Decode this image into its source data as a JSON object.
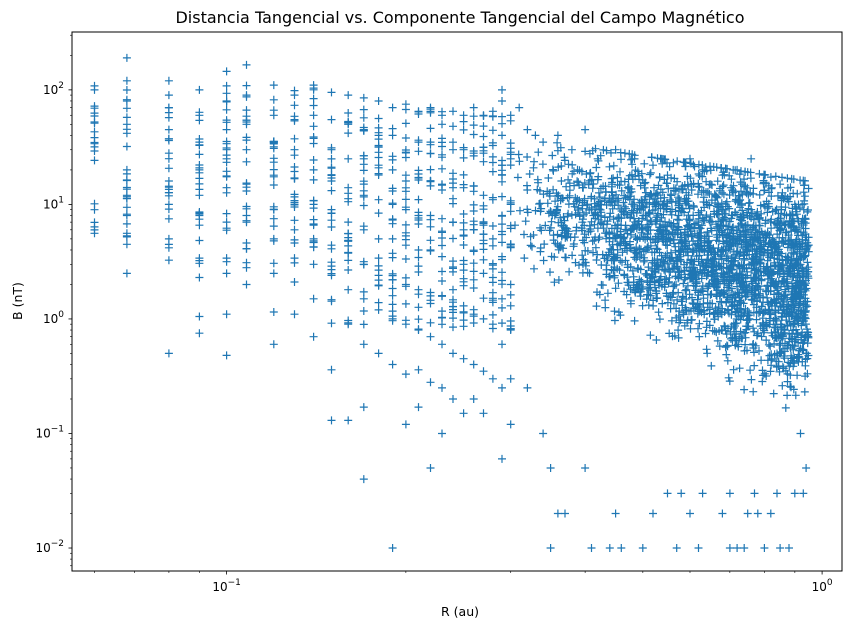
{
  "chart_data": {
    "type": "scatter",
    "title": "Distancia Tangencial vs. Componente Tangencial del Campo Magnético",
    "xlabel": "R (au)",
    "ylabel": "B (nT)",
    "xscale": "log",
    "yscale": "log",
    "xlim": [
      0.055,
      1.08
    ],
    "ylim": [
      0.0063,
      320
    ],
    "marker": "+",
    "color": "#1f77b4",
    "grid": false,
    "x_major_ticks": [
      {
        "value": 0.1,
        "base": "10",
        "exp": "−1"
      },
      {
        "value": 1,
        "base": "10",
        "exp": "0"
      }
    ],
    "y_major_ticks": [
      {
        "value": 0.01,
        "base": "10",
        "exp": "−2"
      },
      {
        "value": 0.1,
        "base": "10",
        "exp": "−1"
      },
      {
        "value": 1,
        "base": "10",
        "exp": "0"
      },
      {
        "value": 10,
        "base": "10",
        "exp": "1"
      },
      {
        "value": 100,
        "base": "10",
        "exp": "2"
      }
    ],
    "series": [
      {
        "x_columns": [
          0.06,
          0.068,
          0.08,
          0.09,
          0.1,
          0.108,
          0.12,
          0.13,
          0.14,
          0.15,
          0.16,
          0.17,
          0.18,
          0.19,
          0.2,
          0.21,
          0.22,
          0.23,
          0.24,
          0.25,
          0.26,
          0.27,
          0.28,
          0.29,
          0.3
        ],
        "points": [
          [
            0.06,
            100
          ],
          [
            0.068,
            190
          ],
          [
            0.068,
            120
          ],
          [
            0.068,
            80
          ],
          [
            0.068,
            50
          ],
          [
            0.068,
            32
          ],
          [
            0.068,
            20
          ],
          [
            0.068,
            12
          ],
          [
            0.068,
            8
          ],
          [
            0.068,
            5.2
          ],
          [
            0.068,
            2.5
          ],
          [
            0.08,
            120
          ],
          [
            0.08,
            70
          ],
          [
            0.08,
            45
          ],
          [
            0.08,
            28
          ],
          [
            0.08,
            16
          ],
          [
            0.08,
            10
          ],
          [
            0.08,
            5
          ],
          [
            0.08,
            0.5
          ],
          [
            0.09,
            100
          ],
          [
            0.09,
            60
          ],
          [
            0.09,
            35
          ],
          [
            0.09,
            20
          ],
          [
            0.09,
            12
          ],
          [
            0.09,
            8
          ],
          [
            0.09,
            3.4
          ],
          [
            0.09,
            2.3
          ],
          [
            0.09,
            1.05
          ],
          [
            0.09,
            0.75
          ],
          [
            0.1,
            145
          ],
          [
            0.1,
            80
          ],
          [
            0.1,
            45
          ],
          [
            0.1,
            25
          ],
          [
            0.1,
            14
          ],
          [
            0.1,
            7
          ],
          [
            0.1,
            3.4
          ],
          [
            0.1,
            2.5
          ],
          [
            0.1,
            1.1
          ],
          [
            0.1,
            0.48
          ],
          [
            0.108,
            165
          ],
          [
            0.108,
            90
          ],
          [
            0.108,
            50
          ],
          [
            0.108,
            30
          ],
          [
            0.108,
            15
          ],
          [
            0.108,
            8
          ],
          [
            0.108,
            4.6
          ],
          [
            0.108,
            2.8
          ],
          [
            0.108,
            2.0
          ],
          [
            0.12,
            110
          ],
          [
            0.12,
            60
          ],
          [
            0.12,
            35
          ],
          [
            0.12,
            18
          ],
          [
            0.12,
            9
          ],
          [
            0.12,
            5
          ],
          [
            0.12,
            2.5
          ],
          [
            0.12,
            1.15
          ],
          [
            0.12,
            0.6
          ],
          [
            0.13,
            90
          ],
          [
            0.13,
            55
          ],
          [
            0.13,
            30
          ],
          [
            0.13,
            17
          ],
          [
            0.13,
            10
          ],
          [
            0.13,
            6
          ],
          [
            0.13,
            3.4
          ],
          [
            0.13,
            2.1
          ],
          [
            0.13,
            1.1
          ],
          [
            0.14,
            110
          ],
          [
            0.14,
            60
          ],
          [
            0.14,
            34
          ],
          [
            0.14,
            20
          ],
          [
            0.14,
            10
          ],
          [
            0.14,
            5
          ],
          [
            0.14,
            3
          ],
          [
            0.14,
            1.5
          ],
          [
            0.14,
            0.7
          ],
          [
            0.15,
            95
          ],
          [
            0.15,
            55
          ],
          [
            0.15,
            30
          ],
          [
            0.15,
            16
          ],
          [
            0.15,
            9
          ],
          [
            0.15,
            4.4
          ],
          [
            0.15,
            2.4
          ],
          [
            0.15,
            0.36
          ],
          [
            0.15,
            0.13
          ],
          [
            0.16,
            90
          ],
          [
            0.16,
            50
          ],
          [
            0.16,
            25
          ],
          [
            0.16,
            14
          ],
          [
            0.16,
            7
          ],
          [
            0.16,
            3.8
          ],
          [
            0.16,
            1.8
          ],
          [
            0.16,
            0.9
          ],
          [
            0.16,
            0.13
          ],
          [
            0.17,
            85
          ],
          [
            0.17,
            45
          ],
          [
            0.17,
            25
          ],
          [
            0.17,
            12
          ],
          [
            0.17,
            6
          ],
          [
            0.17,
            3
          ],
          [
            0.17,
            1.5
          ],
          [
            0.17,
            0.6
          ],
          [
            0.17,
            0.17
          ],
          [
            0.17,
            0.04
          ],
          [
            0.18,
            80
          ],
          [
            0.18,
            40
          ],
          [
            0.18,
            22
          ],
          [
            0.18,
            11
          ],
          [
            0.18,
            5
          ],
          [
            0.18,
            2.4
          ],
          [
            0.18,
            1.2
          ],
          [
            0.18,
            0.5
          ],
          [
            0.19,
            70
          ],
          [
            0.19,
            40
          ],
          [
            0.19,
            20
          ],
          [
            0.19,
            10
          ],
          [
            0.19,
            5
          ],
          [
            0.19,
            2.2
          ],
          [
            0.19,
            1.0
          ],
          [
            0.19,
            0.4
          ],
          [
            0.19,
            0.01
          ],
          [
            0.2,
            75
          ],
          [
            0.2,
            38
          ],
          [
            0.2,
            18
          ],
          [
            0.2,
            9
          ],
          [
            0.2,
            4.4
          ],
          [
            0.2,
            2
          ],
          [
            0.2,
            0.9
          ],
          [
            0.2,
            0.33
          ],
          [
            0.2,
            0.12
          ],
          [
            0.21,
            65
          ],
          [
            0.21,
            35
          ],
          [
            0.21,
            17
          ],
          [
            0.21,
            8
          ],
          [
            0.21,
            4
          ],
          [
            0.21,
            1.8
          ],
          [
            0.21,
            0.8
          ],
          [
            0.21,
            0.36
          ],
          [
            0.21,
            0.17
          ],
          [
            0.22,
            70
          ],
          [
            0.22,
            35
          ],
          [
            0.22,
            16
          ],
          [
            0.22,
            8
          ],
          [
            0.22,
            4
          ],
          [
            0.22,
            1.7
          ],
          [
            0.22,
            0.7
          ],
          [
            0.22,
            0.28
          ],
          [
            0.22,
            0.05
          ],
          [
            0.23,
            60
          ],
          [
            0.23,
            32
          ],
          [
            0.23,
            15
          ],
          [
            0.23,
            7.5
          ],
          [
            0.23,
            3.5
          ],
          [
            0.23,
            1.6
          ],
          [
            0.23,
            0.6
          ],
          [
            0.23,
            0.25
          ],
          [
            0.23,
            0.1
          ],
          [
            0.24,
            65
          ],
          [
            0.24,
            30
          ],
          [
            0.24,
            14
          ],
          [
            0.24,
            7
          ],
          [
            0.24,
            3.2
          ],
          [
            0.24,
            1.4
          ],
          [
            0.24,
            0.5
          ],
          [
            0.24,
            0.2
          ],
          [
            0.25,
            60
          ],
          [
            0.25,
            30
          ],
          [
            0.25,
            14
          ],
          [
            0.25,
            6
          ],
          [
            0.25,
            3
          ],
          [
            0.25,
            1.3
          ],
          [
            0.25,
            0.45
          ],
          [
            0.25,
            0.15
          ],
          [
            0.26,
            70
          ],
          [
            0.26,
            28
          ],
          [
            0.26,
            13
          ],
          [
            0.26,
            6
          ],
          [
            0.26,
            2.6
          ],
          [
            0.26,
            1.1
          ],
          [
            0.26,
            0.4
          ],
          [
            0.26,
            0.2
          ],
          [
            0.27,
            60
          ],
          [
            0.27,
            28
          ],
          [
            0.27,
            12
          ],
          [
            0.27,
            5.5
          ],
          [
            0.27,
            2.5
          ],
          [
            0.27,
            1.0
          ],
          [
            0.27,
            0.35
          ],
          [
            0.27,
            0.15
          ],
          [
            0.28,
            65
          ],
          [
            0.28,
            26
          ],
          [
            0.28,
            11
          ],
          [
            0.28,
            5
          ],
          [
            0.28,
            2.3
          ],
          [
            0.28,
            0.9
          ],
          [
            0.28,
            0.3
          ],
          [
            0.29,
            100
          ],
          [
            0.29,
            80
          ],
          [
            0.29,
            40
          ],
          [
            0.29,
            18
          ],
          [
            0.29,
            8
          ],
          [
            0.29,
            3.5
          ],
          [
            0.29,
            1.5
          ],
          [
            0.29,
            0.6
          ],
          [
            0.29,
            0.25
          ],
          [
            0.29,
            0.06
          ],
          [
            0.3,
            60
          ],
          [
            0.3,
            25
          ],
          [
            0.3,
            10
          ],
          [
            0.3,
            4.5
          ],
          [
            0.3,
            2
          ],
          [
            0.3,
            0.8
          ],
          [
            0.3,
            0.3
          ],
          [
            0.3,
            0.12
          ],
          [
            0.31,
            70
          ],
          [
            0.32,
            45
          ],
          [
            0.33,
            40
          ],
          [
            0.34,
            35
          ],
          [
            0.36,
            40
          ],
          [
            0.38,
            30
          ],
          [
            0.4,
            45
          ],
          [
            0.42,
            25
          ],
          [
            0.45,
            30
          ],
          [
            0.48,
            25
          ],
          [
            0.52,
            22
          ],
          [
            0.55,
            18
          ],
          [
            0.6,
            25
          ],
          [
            0.63,
            20
          ],
          [
            0.68,
            18
          ],
          [
            0.72,
            20
          ],
          [
            0.76,
            25
          ],
          [
            0.8,
            18
          ],
          [
            0.85,
            15
          ],
          [
            0.9,
            10
          ],
          [
            0.32,
            0.25
          ],
          [
            0.34,
            0.1
          ],
          [
            0.35,
            0.05
          ],
          [
            0.36,
            0.02
          ],
          [
            0.37,
            0.02
          ],
          [
            0.35,
            0.01
          ],
          [
            0.4,
            0.05
          ],
          [
            0.41,
            0.01
          ],
          [
            0.44,
            0.01
          ],
          [
            0.46,
            0.01
          ],
          [
            0.5,
            0.01
          ],
          [
            0.57,
            0.01
          ],
          [
            0.62,
            0.01
          ],
          [
            0.7,
            0.01
          ],
          [
            0.72,
            0.01
          ],
          [
            0.74,
            0.01
          ],
          [
            0.8,
            0.01
          ],
          [
            0.85,
            0.01
          ],
          [
            0.88,
            0.01
          ],
          [
            0.45,
            0.02
          ],
          [
            0.52,
            0.02
          ],
          [
            0.6,
            0.02
          ],
          [
            0.68,
            0.02
          ],
          [
            0.75,
            0.02
          ],
          [
            0.78,
            0.02
          ],
          [
            0.82,
            0.02
          ],
          [
            0.55,
            0.03
          ],
          [
            0.58,
            0.03
          ],
          [
            0.63,
            0.03
          ],
          [
            0.7,
            0.03
          ],
          [
            0.77,
            0.03
          ],
          [
            0.84,
            0.03
          ],
          [
            0.9,
            0.03
          ],
          [
            0.92,
            3
          ],
          [
            0.93,
            2
          ],
          [
            0.93,
            1
          ],
          [
            0.94,
            4
          ],
          [
            0.94,
            0.5
          ],
          [
            0.94,
            0.05
          ],
          [
            0.93,
            0.03
          ],
          [
            0.92,
            0.1
          ]
        ]
      }
    ]
  }
}
